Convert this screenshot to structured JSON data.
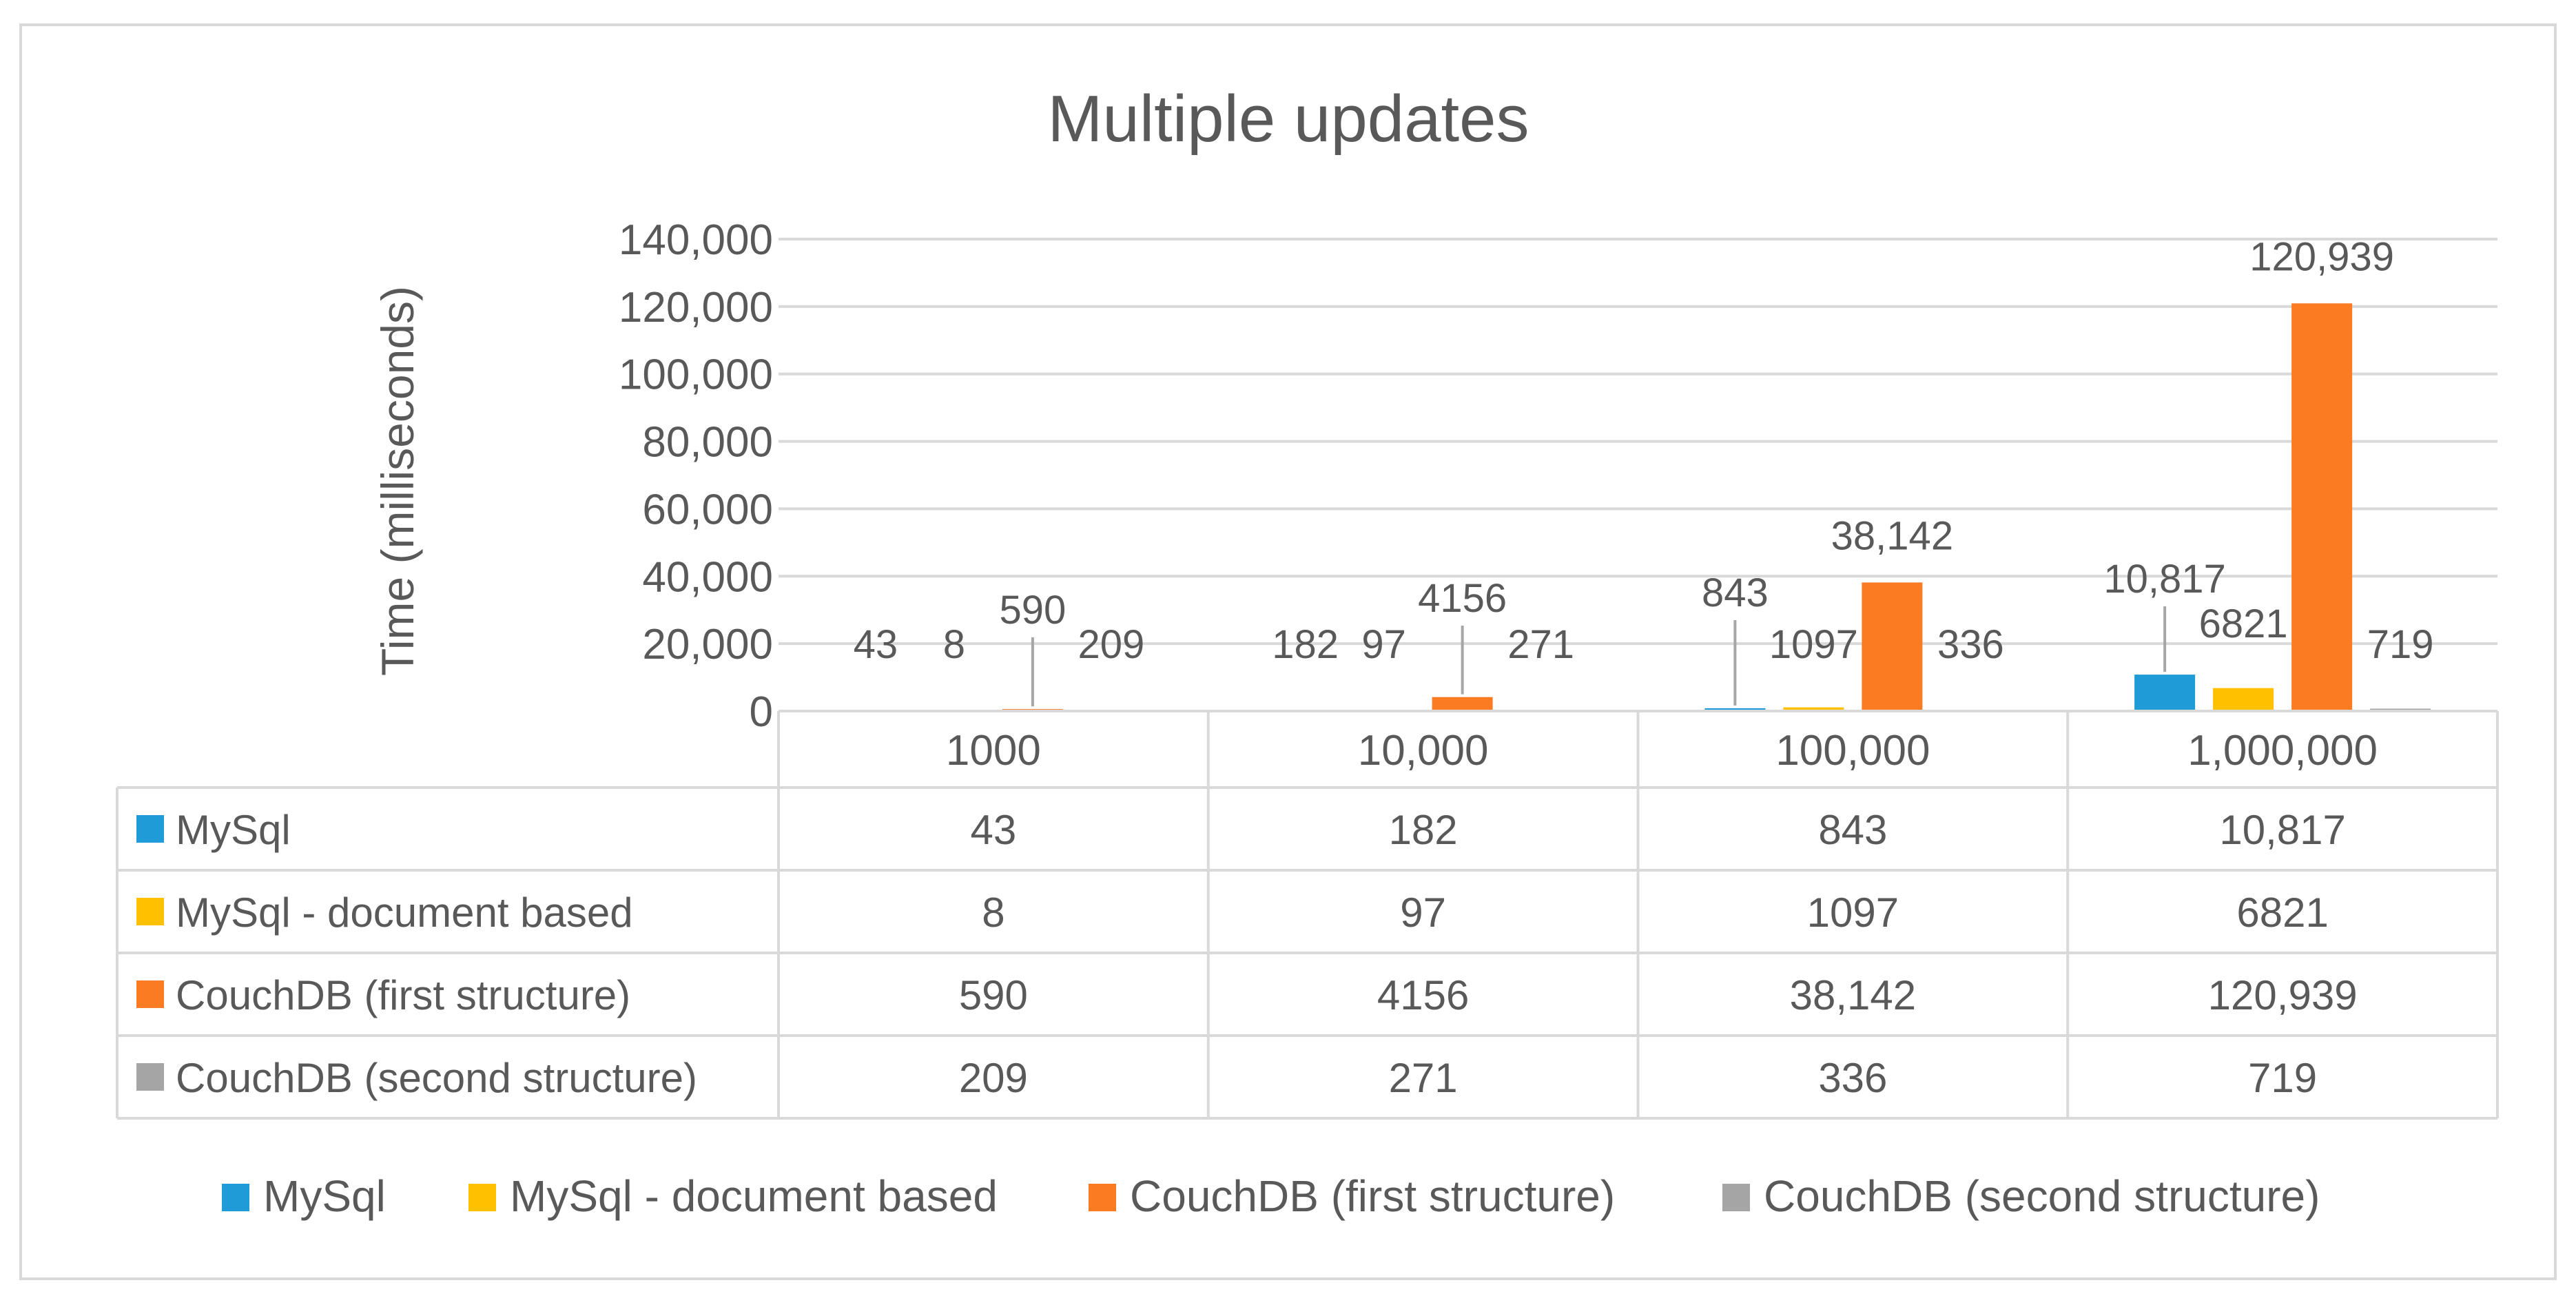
{
  "chart_data": {
    "type": "bar",
    "title": "Multiple updates",
    "ylabel": "Time (milliseconds)",
    "xlabel": "",
    "ylim": [
      0,
      140000
    ],
    "yticks": [
      0,
      20000,
      40000,
      60000,
      80000,
      100000,
      120000,
      140000
    ],
    "ytick_labels": [
      "0",
      "20,000",
      "40,000",
      "60,000",
      "80,000",
      "100,000",
      "120,000",
      "140,000"
    ],
    "categories": [
      "1000",
      "10,000",
      "100,000",
      "1,000,000"
    ],
    "grid": true,
    "legend_position": "bottom",
    "has_data_table": true,
    "series": [
      {
        "name": "MySql",
        "color": "#1f9bd7",
        "values": [
          43,
          182,
          843,
          10817
        ],
        "labels": [
          "43",
          "182",
          "843",
          "10,817"
        ]
      },
      {
        "name": "MySql - document based",
        "color": "#ffc000",
        "values": [
          8,
          97,
          1097,
          6821
        ],
        "labels": [
          "8",
          "97",
          "1097",
          "6821"
        ]
      },
      {
        "name": "CouchDB (first structure)",
        "color": "#fb7b22",
        "values": [
          590,
          4156,
          38142,
          120939
        ],
        "labels": [
          "590",
          "4156",
          "38,142",
          "120,939"
        ]
      },
      {
        "name": "CouchDB (second structure)",
        "color": "#a5a5a5",
        "values": [
          209,
          271,
          336,
          719
        ],
        "labels": [
          "209",
          "271",
          "336",
          "719"
        ]
      }
    ]
  }
}
